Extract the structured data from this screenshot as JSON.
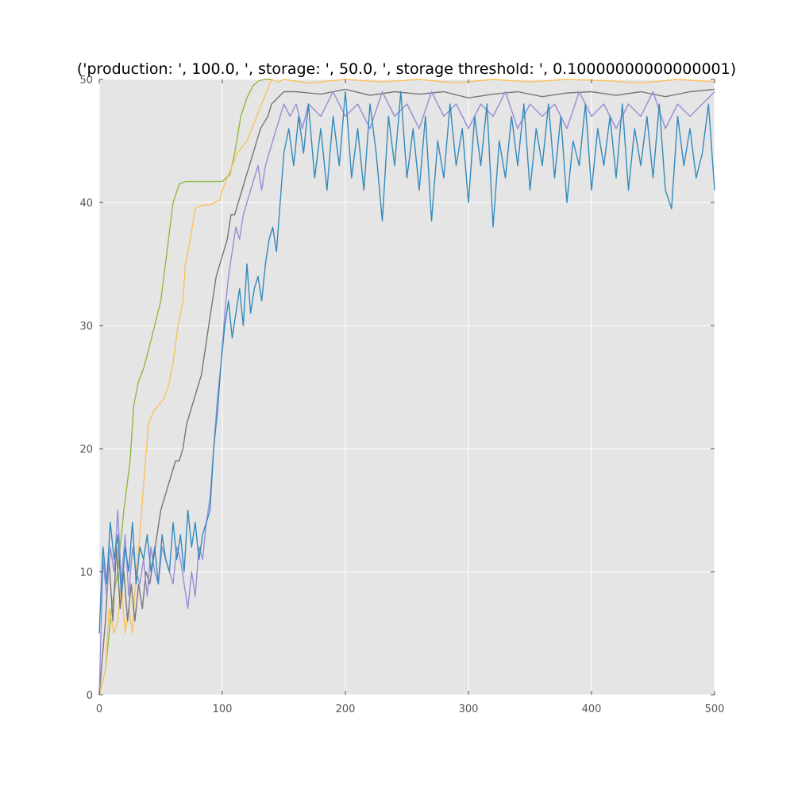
{
  "chart_data": {
    "type": "line",
    "title": "('production: ', 100.0, ', storage: ', 50.0, ', storage threshold: ', 0.10000000000000001)",
    "xlabel": "",
    "ylabel": "",
    "xlim": [
      0,
      500
    ],
    "ylim": [
      0,
      50
    ],
    "xticks": [
      0,
      100,
      200,
      300,
      400,
      500
    ],
    "yticks": [
      0,
      10,
      20,
      30,
      40,
      50
    ],
    "grid": true,
    "background": "#e5e5e5",
    "gridColor": "#ffffff",
    "series": [
      {
        "color": "#8eba42",
        "x": [
          0,
          5,
          10,
          15,
          20,
          25,
          28,
          32,
          36,
          40,
          45,
          50,
          55,
          60,
          65,
          70,
          75,
          80,
          85,
          90,
          95,
          100,
          103,
          106,
          110,
          115,
          120,
          125,
          130,
          135,
          140
        ],
        "y": [
          0,
          2,
          7,
          10,
          15,
          19,
          23.5,
          25.5,
          26.5,
          28,
          30,
          32,
          36,
          40,
          41.5,
          41.7,
          41.7,
          41.7,
          41.7,
          41.7,
          41.7,
          41.7,
          42,
          42.2,
          44,
          47,
          48.5,
          49.5,
          49.9,
          50,
          50
        ]
      },
      {
        "color": "#fbc15e",
        "x": [
          0,
          5,
          8,
          12,
          15,
          18,
          21,
          24,
          27,
          30,
          33,
          36,
          40,
          44,
          48,
          52,
          56,
          60,
          64,
          68,
          70,
          74,
          78,
          82,
          86,
          90,
          94,
          98,
          100,
          104,
          108,
          112,
          116,
          120,
          124,
          128,
          132,
          136,
          140,
          145,
          150,
          170,
          200,
          230,
          260,
          290,
          320,
          350,
          380,
          410,
          440,
          470,
          500
        ],
        "y": [
          0,
          2,
          7,
          5,
          6,
          9,
          5,
          7,
          5,
          10,
          13,
          17,
          22,
          23,
          23.5,
          24,
          25,
          27,
          30,
          32,
          35,
          37,
          39.5,
          39.7,
          39.8,
          39.8,
          40,
          40.2,
          41,
          42,
          43,
          44,
          44.5,
          45,
          46,
          47,
          48,
          49,
          50,
          49.8,
          50,
          49.7,
          50,
          49.8,
          50,
          49.7,
          50,
          49.8,
          50,
          49.9,
          49.7,
          50,
          49.8
        ]
      },
      {
        "color": "#777777",
        "x": [
          0,
          5,
          8,
          11,
          14,
          17,
          20,
          23,
          26,
          29,
          32,
          35,
          38,
          41,
          44,
          47,
          50,
          53,
          56,
          59,
          62,
          65,
          68,
          71,
          74,
          77,
          80,
          83,
          86,
          89,
          92,
          95,
          98,
          101,
          104,
          107,
          110,
          113,
          116,
          119,
          122,
          125,
          128,
          131,
          134,
          137,
          140,
          145,
          150,
          160,
          180,
          200,
          220,
          240,
          260,
          280,
          300,
          320,
          340,
          360,
          380,
          400,
          420,
          440,
          460,
          480,
          500
        ],
        "y": [
          0,
          6,
          11,
          6,
          12,
          7,
          10,
          6,
          9,
          6,
          9,
          7,
          10,
          9,
          11,
          13,
          15,
          16,
          17,
          18,
          19,
          19,
          20,
          22,
          23,
          24,
          25,
          26,
          28,
          30,
          32,
          34,
          35,
          36,
          37,
          39,
          39,
          40,
          41,
          42,
          43,
          44,
          45,
          46,
          46.5,
          47,
          48,
          48.5,
          49,
          49,
          48.8,
          49.2,
          48.7,
          49,
          48.8,
          49,
          48.5,
          48.8,
          49,
          48.6,
          48.9,
          49,
          48.7,
          49,
          48.6,
          49,
          49.2
        ]
      },
      {
        "color": "#988ed5",
        "x": [
          0,
          3,
          6,
          9,
          12,
          15,
          18,
          21,
          24,
          27,
          30,
          33,
          36,
          39,
          42,
          45,
          48,
          51,
          54,
          57,
          60,
          63,
          66,
          69,
          72,
          75,
          78,
          81,
          84,
          87,
          90,
          93,
          96,
          99,
          102,
          105,
          108,
          111,
          114,
          117,
          120,
          123,
          126,
          129,
          132,
          135,
          138,
          141,
          144,
          147,
          150,
          155,
          160,
          165,
          170,
          180,
          190,
          200,
          210,
          220,
          230,
          240,
          250,
          260,
          270,
          280,
          290,
          300,
          310,
          320,
          330,
          340,
          350,
          360,
          370,
          380,
          390,
          400,
          410,
          420,
          430,
          440,
          450,
          460,
          470,
          480,
          490,
          500
        ],
        "y": [
          0,
          11,
          8,
          12,
          10,
          15,
          9,
          13,
          8,
          12,
          10,
          9,
          11,
          8,
          12,
          10,
          9,
          12,
          11,
          10,
          9,
          12,
          11,
          9,
          7,
          10,
          8,
          12,
          11,
          14,
          16,
          20,
          24,
          27,
          31,
          34,
          36,
          38,
          37,
          39,
          40,
          41,
          42,
          43,
          41,
          43,
          44,
          45,
          46,
          47,
          48,
          47,
          48,
          46,
          48,
          47,
          49,
          47,
          48,
          46,
          49,
          47,
          48,
          46,
          49,
          47,
          48,
          46,
          48,
          47,
          49,
          46,
          48,
          47,
          48,
          46,
          49,
          47,
          48,
          46,
          48,
          47,
          49,
          46,
          48,
          47,
          48,
          49
        ]
      },
      {
        "color": "#348abd",
        "x": [
          0,
          3,
          6,
          9,
          12,
          15,
          18,
          21,
          24,
          27,
          30,
          33,
          36,
          39,
          42,
          45,
          48,
          51,
          54,
          57,
          60,
          63,
          66,
          69,
          72,
          75,
          78,
          81,
          84,
          87,
          90,
          93,
          96,
          99,
          102,
          105,
          108,
          111,
          114,
          117,
          120,
          123,
          126,
          129,
          132,
          135,
          138,
          141,
          144,
          147,
          150,
          154,
          158,
          162,
          166,
          170,
          175,
          180,
          185,
          190,
          195,
          200,
          205,
          210,
          215,
          220,
          225,
          230,
          235,
          240,
          245,
          250,
          255,
          260,
          265,
          270,
          275,
          280,
          285,
          290,
          295,
          300,
          305,
          310,
          315,
          320,
          325,
          330,
          335,
          340,
          345,
          350,
          355,
          360,
          365,
          370,
          375,
          380,
          385,
          390,
          395,
          400,
          405,
          410,
          415,
          420,
          425,
          430,
          435,
          440,
          445,
          450,
          455,
          460,
          465,
          470,
          475,
          480,
          485,
          490,
          495,
          500
        ],
        "y": [
          5,
          12,
          9,
          14,
          11,
          13,
          8,
          12,
          10,
          14,
          9,
          12,
          11,
          13,
          10,
          12,
          9,
          13,
          11,
          10,
          14,
          11,
          13,
          10,
          15,
          12,
          14,
          11,
          13,
          14,
          15,
          20,
          23,
          27,
          30,
          32,
          29,
          31,
          33,
          30,
          35,
          31,
          33,
          34,
          32,
          35,
          37,
          38,
          36,
          40,
          44,
          46,
          43,
          47,
          44,
          48,
          42,
          46,
          41,
          47,
          43,
          49,
          42,
          46,
          41,
          48,
          44,
          38.5,
          47,
          43,
          49,
          42,
          46,
          41,
          47,
          38.5,
          45,
          42,
          48,
          43,
          46,
          40,
          47,
          43,
          48,
          38,
          45,
          42,
          47,
          43,
          48,
          41,
          46,
          43,
          48,
          42,
          47,
          40,
          45,
          43,
          48,
          41,
          46,
          43,
          47,
          42,
          48,
          41,
          46,
          43,
          47,
          42,
          48,
          41,
          39.5,
          47,
          43,
          46,
          42,
          44,
          48,
          41
        ]
      }
    ]
  }
}
